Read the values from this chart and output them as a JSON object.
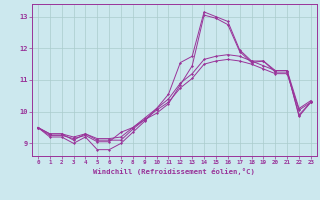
{
  "xlabel": "Windchill (Refroidissement éolien,°C)",
  "background_color": "#cce8ee",
  "line_color": "#993399",
  "grid_color": "#aacccc",
  "x_hours": [
    0,
    1,
    2,
    3,
    4,
    5,
    6,
    7,
    8,
    9,
    10,
    11,
    12,
    13,
    14,
    15,
    16,
    17,
    18,
    19,
    20,
    21,
    22,
    23
  ],
  "line1": [
    9.5,
    9.2,
    9.2,
    9.0,
    9.2,
    8.8,
    8.8,
    9.0,
    9.35,
    9.7,
    10.1,
    10.55,
    11.55,
    11.75,
    13.15,
    13.0,
    12.85,
    11.95,
    11.6,
    11.6,
    11.3,
    11.3,
    9.85,
    10.3
  ],
  "line2": [
    9.5,
    9.25,
    9.25,
    9.15,
    9.25,
    9.05,
    9.05,
    9.35,
    9.5,
    9.75,
    10.05,
    10.3,
    10.75,
    11.05,
    11.5,
    11.6,
    11.65,
    11.6,
    11.5,
    11.35,
    11.2,
    11.2,
    10.05,
    10.3
  ],
  "line3": [
    9.5,
    9.3,
    9.3,
    9.2,
    9.3,
    9.15,
    9.15,
    9.2,
    9.5,
    9.8,
    10.1,
    10.4,
    10.9,
    11.2,
    11.65,
    11.75,
    11.8,
    11.75,
    11.6,
    11.45,
    11.3,
    11.3,
    10.1,
    10.35
  ],
  "line4": [
    9.5,
    9.3,
    9.3,
    9.1,
    9.3,
    9.1,
    9.1,
    9.1,
    9.45,
    9.75,
    9.95,
    10.25,
    10.85,
    11.45,
    13.05,
    12.95,
    12.75,
    11.9,
    11.55,
    11.6,
    11.25,
    11.25,
    9.9,
    10.3
  ],
  "ylim": [
    8.6,
    13.4
  ],
  "yticks": [
    9,
    10,
    11,
    12,
    13
  ],
  "xlim": [
    -0.5,
    23.5
  ]
}
